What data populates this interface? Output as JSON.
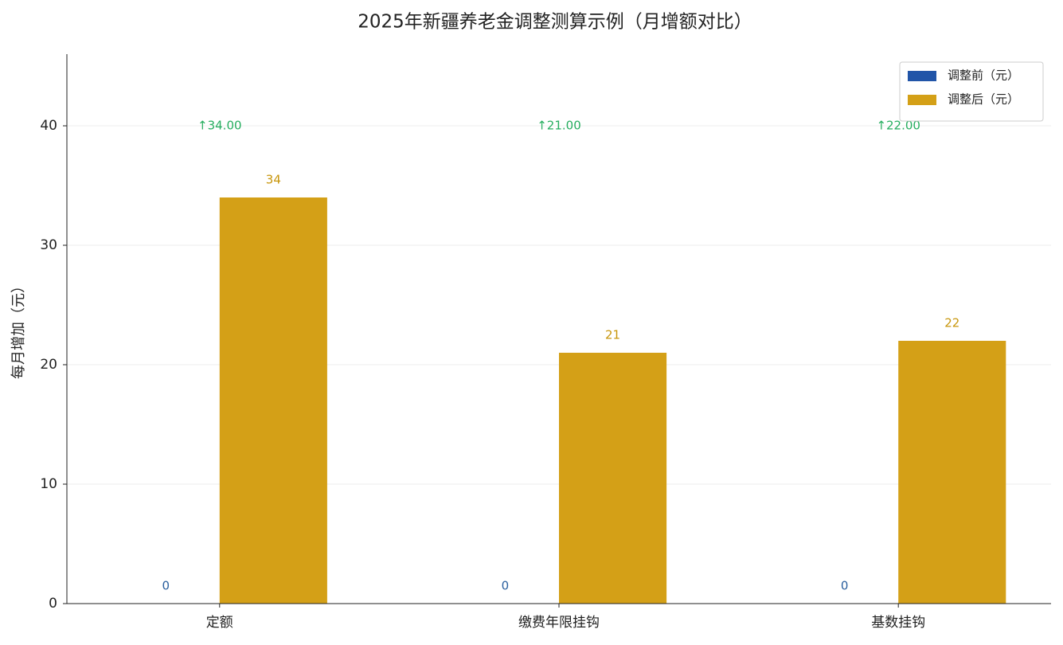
{
  "chart_data": {
    "type": "bar",
    "title": "2025年新疆养老金调整测算示例（月增额对比）",
    "ylabel": "每月增加（元）",
    "categories": [
      "定额",
      "缴费年限挂钩",
      "基数挂钩"
    ],
    "series": [
      {
        "name": "调整前（元）",
        "color": "#2155a8",
        "values": [
          0,
          0,
          0
        ]
      },
      {
        "name": "调整后（元）",
        "color": "#d4a017",
        "values": [
          34,
          21,
          22
        ]
      }
    ],
    "annotations": [
      "↑34.00",
      "↑21.00",
      "↑22.00"
    ],
    "ylim": [
      0,
      46
    ],
    "yticks": [
      0,
      10,
      20,
      30,
      40
    ],
    "grid": true,
    "legend": "upper right"
  }
}
